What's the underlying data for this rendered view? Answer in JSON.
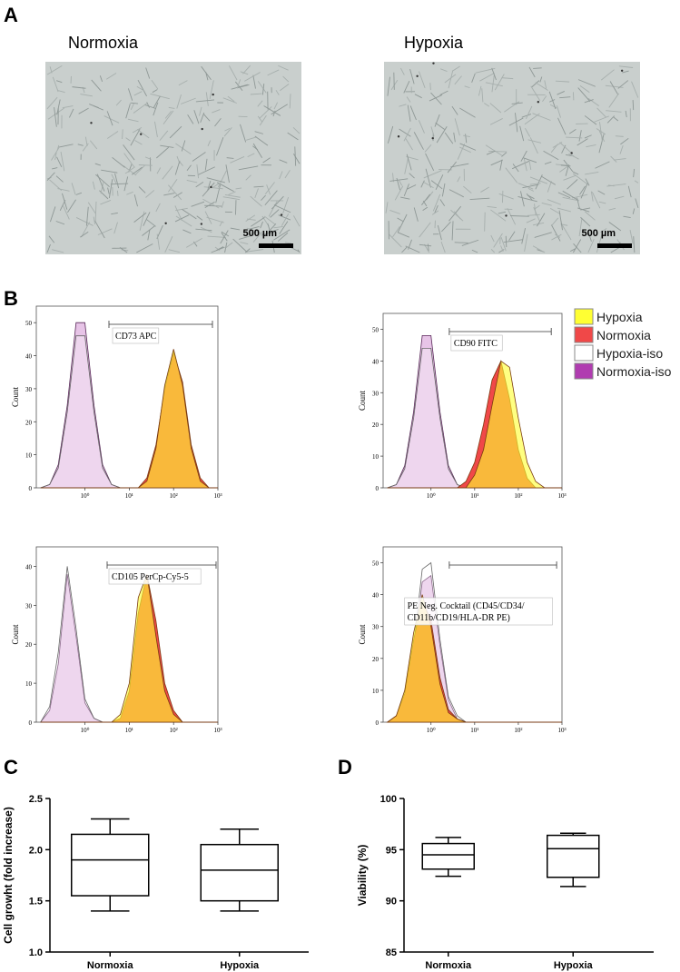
{
  "panel_labels": {
    "a": "A",
    "b": "B",
    "c": "C",
    "d": "D"
  },
  "micrographs": [
    {
      "title": "Normoxia",
      "scale_bar": "500 µm"
    },
    {
      "title": "Hypoxia",
      "scale_bar": "500 µm"
    }
  ],
  "flow_legend": [
    {
      "name": "Hypoxia",
      "color": "#ffff33"
    },
    {
      "name": "Normoxia",
      "color": "#f04848"
    },
    {
      "name": "Hypoxia-iso",
      "color": "#ffffff"
    },
    {
      "name": "Normoxia-iso",
      "color": "#b03cb0"
    }
  ],
  "chart_data": [
    {
      "type": "area",
      "y_label": "Count",
      "gate_label": [
        "CD73 APC"
      ],
      "log_x": true,
      "x": [
        0.1,
        0.16,
        0.25,
        0.4,
        0.63,
        1,
        1.6,
        2.5,
        4,
        6.3,
        10,
        16,
        25,
        40,
        63,
        100,
        160,
        250,
        400,
        630,
        1000
      ],
      "xlim": [
        0.08,
        1000
      ],
      "xticks": [
        {
          "value": 1,
          "label": "10⁰"
        },
        {
          "value": 10,
          "label": "10¹"
        },
        {
          "value": 100,
          "label": "10²"
        },
        {
          "value": 1000,
          "label": "10³"
        }
      ],
      "ylim": [
        0,
        55
      ],
      "yticks": [
        0,
        10,
        20,
        30,
        40,
        50
      ],
      "series": [
        {
          "values": [
            0,
            0,
            0,
            0,
            0,
            0,
            0,
            0,
            0,
            0,
            0,
            0,
            2,
            12,
            31,
            42,
            31,
            12,
            2,
            0,
            0
          ]
        },
        {
          "values": [
            0,
            0,
            0,
            0,
            0,
            0,
            0,
            0,
            0,
            0,
            0,
            0,
            3,
            13,
            30,
            41,
            32,
            13,
            3,
            0,
            0
          ]
        },
        {
          "values": [
            0,
            1,
            6,
            23,
            46,
            46,
            23,
            6,
            1,
            0,
            0,
            0,
            0,
            0,
            0,
            0,
            0,
            0,
            0,
            0,
            0
          ]
        },
        {
          "values": [
            0,
            1,
            7,
            25,
            50,
            50,
            25,
            7,
            1,
            0,
            0,
            0,
            0,
            0,
            0,
            0,
            0,
            0,
            0,
            0,
            0
          ]
        }
      ]
    },
    {
      "type": "area",
      "y_label": "Count",
      "gate_label": [
        "CD90 FITC"
      ],
      "log_x": true,
      "x": [
        0.1,
        0.16,
        0.25,
        0.4,
        0.63,
        1,
        1.6,
        2.5,
        4,
        6.3,
        10,
        16,
        25,
        40,
        63,
        100,
        160,
        250,
        400,
        630,
        1000
      ],
      "xlim": [
        0.08,
        1000
      ],
      "xticks": [
        {
          "value": 1,
          "label": "10⁰"
        },
        {
          "value": 10,
          "label": "10¹"
        },
        {
          "value": 100,
          "label": "10²"
        },
        {
          "value": 1000,
          "label": "10³"
        }
      ],
      "ylim": [
        0,
        55
      ],
      "yticks": [
        0,
        10,
        20,
        30,
        40,
        50
      ],
      "series": [
        {
          "values": [
            0,
            0,
            0,
            0,
            0,
            0,
            0,
            0,
            0,
            0,
            4,
            12,
            26,
            40,
            38,
            22,
            8,
            2,
            0,
            0,
            0
          ]
        },
        {
          "values": [
            0,
            0,
            0,
            0,
            0,
            0,
            0,
            0,
            0,
            2,
            8,
            20,
            34,
            40,
            28,
            12,
            3,
            0,
            0,
            0,
            0
          ]
        },
        {
          "values": [
            0,
            1,
            6,
            22,
            44,
            44,
            22,
            6,
            1,
            0,
            0,
            0,
            0,
            0,
            0,
            0,
            0,
            0,
            0,
            0,
            0
          ]
        },
        {
          "values": [
            0,
            1,
            7,
            24,
            48,
            48,
            24,
            7,
            1,
            0,
            0,
            0,
            0,
            0,
            0,
            0,
            0,
            0,
            0,
            0,
            0
          ]
        }
      ]
    },
    {
      "type": "area",
      "y_label": "Count",
      "gate_label": [
        "CD105 PerCp-Cy5-5"
      ],
      "log_x": true,
      "x": [
        0.1,
        0.16,
        0.25,
        0.4,
        0.63,
        1,
        1.6,
        2.5,
        4,
        6.3,
        10,
        16,
        25,
        40,
        63,
        100,
        160,
        250,
        400,
        630,
        1000
      ],
      "xlim": [
        0.08,
        1000
      ],
      "xticks": [
        {
          "value": 1,
          "label": "10⁰"
        },
        {
          "value": 10,
          "label": "10¹"
        },
        {
          "value": 100,
          "label": "10²"
        },
        {
          "value": 1000,
          "label": "10³"
        }
      ],
      "ylim": [
        0,
        45
      ],
      "yticks": [
        0,
        10,
        20,
        30,
        40
      ],
      "series": [
        {
          "values": [
            0,
            0,
            0,
            0,
            0,
            0,
            0,
            0,
            0,
            2,
            10,
            32,
            38,
            22,
            8,
            2,
            0,
            0,
            0,
            0,
            0
          ]
        },
        {
          "values": [
            0,
            0,
            0,
            0,
            0,
            0,
            0,
            0,
            0,
            1,
            8,
            28,
            38,
            26,
            10,
            3,
            0,
            0,
            0,
            0,
            0
          ]
        },
        {
          "values": [
            0,
            4,
            18,
            40,
            24,
            6,
            1,
            0,
            0,
            0,
            0,
            0,
            0,
            0,
            0,
            0,
            0,
            0,
            0,
            0,
            0
          ]
        },
        {
          "values": [
            0,
            3,
            15,
            38,
            22,
            5,
            1,
            0,
            0,
            0,
            0,
            0,
            0,
            0,
            0,
            0,
            0,
            0,
            0,
            0,
            0
          ]
        }
      ]
    },
    {
      "type": "area",
      "y_label": "Count",
      "gate_label": [
        "PE Neg. Cocktail (CD45/CD34/",
        "CD11b/CD19/HLA-DR PE)"
      ],
      "log_x": true,
      "x": [
        0.1,
        0.16,
        0.25,
        0.4,
        0.63,
        1,
        1.6,
        2.5,
        4,
        6.3,
        10,
        16,
        25,
        40,
        63,
        100,
        160,
        250,
        400,
        630,
        1000
      ],
      "xlim": [
        0.08,
        1000
      ],
      "xticks": [
        {
          "value": 1,
          "label": "10⁰"
        },
        {
          "value": 10,
          "label": "10¹"
        },
        {
          "value": 100,
          "label": "10²"
        },
        {
          "value": 1000,
          "label": "10³"
        }
      ],
      "ylim": [
        0,
        55
      ],
      "yticks": [
        0,
        10,
        20,
        30,
        40,
        50
      ],
      "series": [
        {
          "values": [
            0,
            2,
            10,
            28,
            40,
            30,
            12,
            3,
            1,
            0,
            0,
            0,
            0,
            0,
            0,
            0,
            0,
            0,
            0,
            0,
            0
          ]
        },
        {
          "values": [
            0,
            2,
            9,
            26,
            38,
            32,
            14,
            4,
            1,
            0,
            0,
            0,
            0,
            0,
            0,
            0,
            0,
            0,
            0,
            0,
            0
          ]
        },
        {
          "values": [
            0,
            1,
            6,
            24,
            48,
            50,
            26,
            8,
            2,
            0,
            0,
            0,
            0,
            0,
            0,
            0,
            0,
            0,
            0,
            0,
            0
          ]
        },
        {
          "values": [
            0,
            1,
            6,
            22,
            44,
            46,
            24,
            7,
            1,
            0,
            0,
            0,
            0,
            0,
            0,
            0,
            0,
            0,
            0,
            0,
            0
          ]
        }
      ]
    },
    {
      "type": "box",
      "y_label": "Cell growht (fold increase)",
      "categories": [
        "Normoxia",
        "Hypoxia"
      ],
      "min": [
        1.4,
        1.4
      ],
      "q1": [
        1.55,
        1.5
      ],
      "median": [
        1.9,
        1.8
      ],
      "q3": [
        2.15,
        2.05
      ],
      "max": [
        2.3,
        2.2
      ],
      "ylim": [
        1.0,
        2.5
      ],
      "yticks": [
        {
          "value": 1,
          "label": "1.0"
        },
        1.5,
        {
          "value": 2,
          "label": "2.0"
        },
        2.5
      ]
    },
    {
      "type": "box",
      "y_label": "Viability (%)",
      "categories": [
        "Normoxia",
        "Hypoxia"
      ],
      "min": [
        92.4,
        91.4
      ],
      "q1": [
        93.1,
        92.3
      ],
      "median": [
        94.5,
        95.1
      ],
      "q3": [
        95.6,
        96.4
      ],
      "max": [
        96.2,
        96.6
      ],
      "ylim": [
        85,
        100
      ],
      "yticks": [
        85,
        90,
        95,
        100
      ]
    }
  ]
}
